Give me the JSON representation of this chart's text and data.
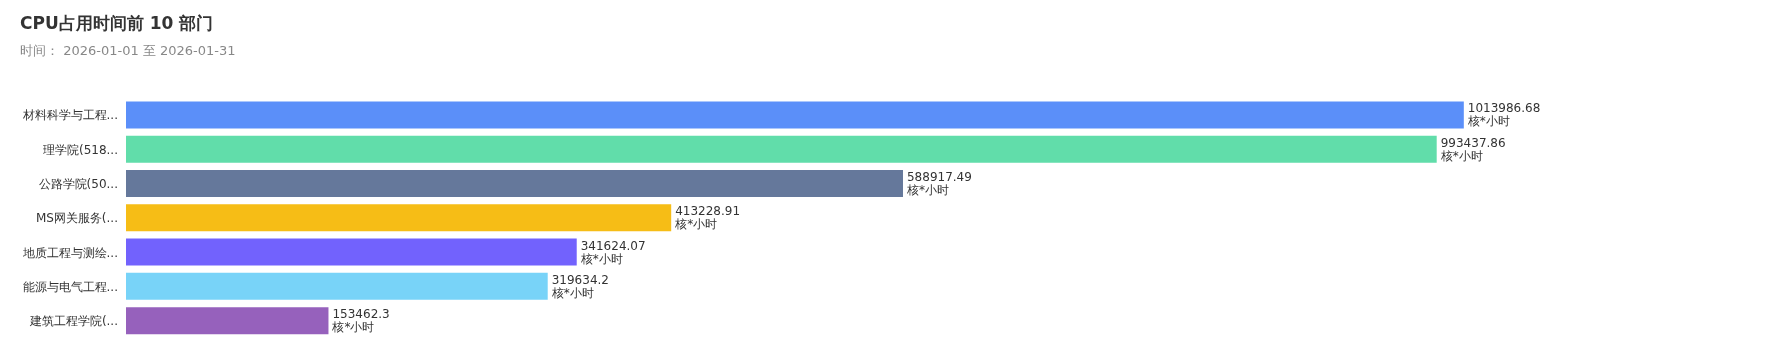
{
  "chart_data": {
    "type": "bar",
    "orientation": "horizontal",
    "title": "CPU占用时间前 10 部门",
    "subtitle": "时间： 2026-01-01 至 2026-01-31",
    "categories": [
      "材料科学与工程...",
      "理学院(518...",
      "公路学院(50...",
      "MS网关服务(...",
      "地质工程与测绘...",
      "能源与电气工程...",
      "建筑工程学院(..."
    ],
    "values": [
      1013986.68,
      993437.86,
      588917.49,
      413228.91,
      341624.07,
      319634.2,
      153462.3
    ],
    "colors": [
      "#5b8ff9",
      "#61ddaa",
      "#65789b",
      "#f6bd16",
      "#7262fd",
      "#78d3f8",
      "#9661bc"
    ],
    "value_labels": [
      "1013986.68\n核*小时",
      "993437.86\n核*小时",
      "588917.49\n核*小时",
      "413228.91\n核*小时",
      "341624.07\n核*小时",
      "319634.2\n核*小时",
      "153462.3\n核*小时"
    ],
    "legend": false
  }
}
